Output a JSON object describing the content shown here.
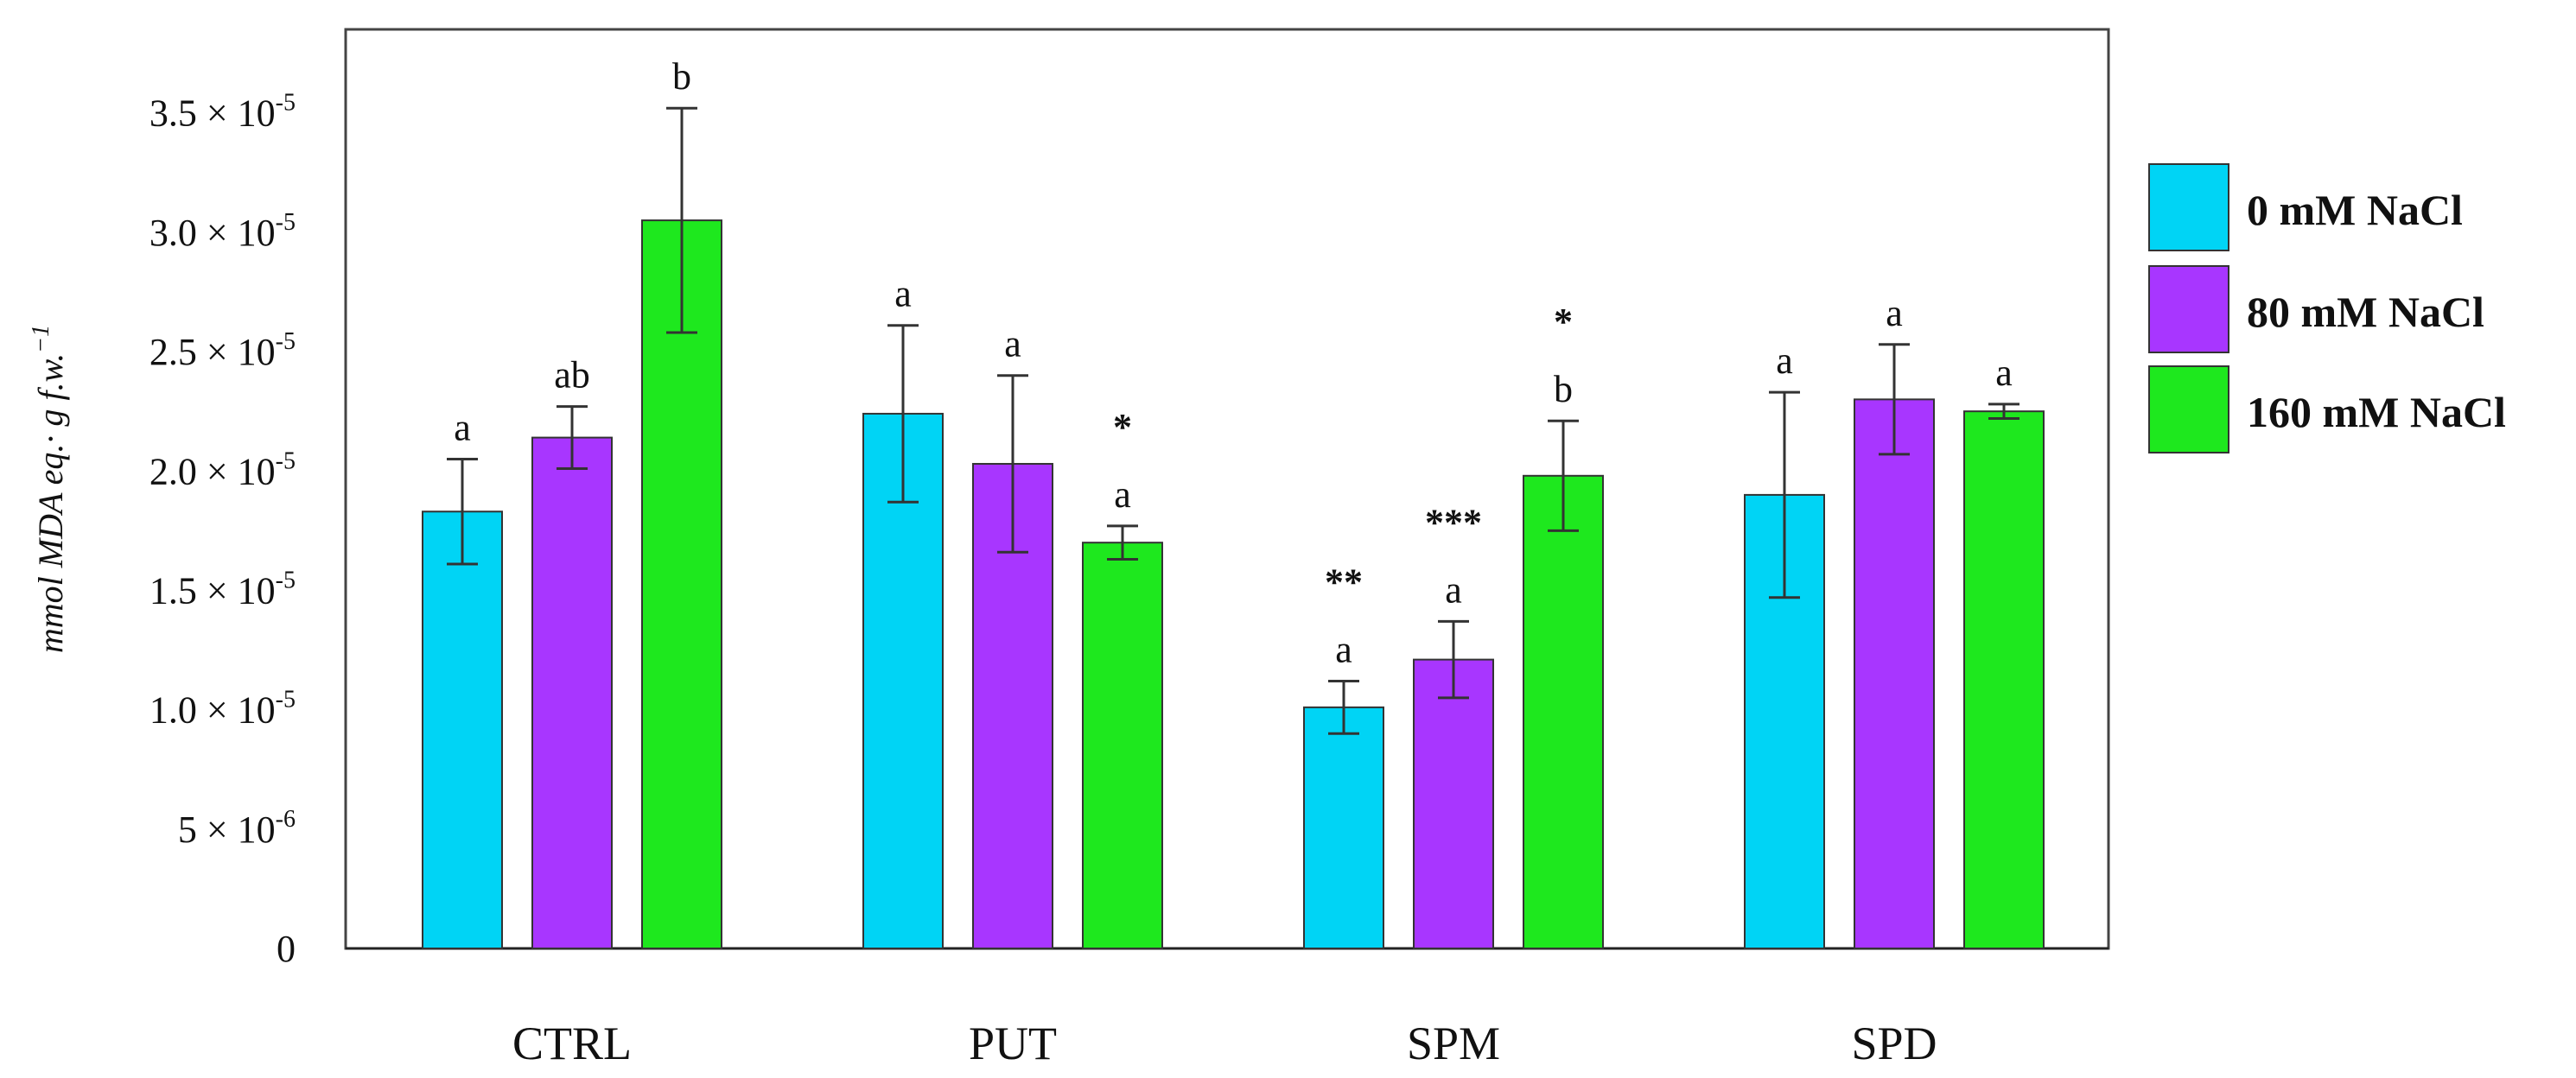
{
  "chart_data": {
    "type": "bar",
    "title": "",
    "xlabel": "",
    "ylabel": "mmol MDA eq.· g f.w.",
    "ylabel_exponent": "−1",
    "ylim": [
      0,
      3.85e-05
    ],
    "yticks": [
      {
        "value": 0,
        "label": "0"
      },
      {
        "value": 5e-06,
        "label": "5 × 10",
        "exp": "-6"
      },
      {
        "value": 1e-05,
        "label": "1.0 × 10",
        "exp": "-5"
      },
      {
        "value": 1.5e-05,
        "label": "1.5 × 10",
        "exp": "-5"
      },
      {
        "value": 2e-05,
        "label": "2.0 × 10",
        "exp": "-5"
      },
      {
        "value": 2.5e-05,
        "label": "2.5 × 10",
        "exp": "-5"
      },
      {
        "value": 3e-05,
        "label": "3.0 × 10",
        "exp": "-5"
      },
      {
        "value": 3.5e-05,
        "label": "3.5 × 10",
        "exp": "-5"
      }
    ],
    "categories": [
      "CTRL",
      "PUT",
      "SPM",
      "SPD"
    ],
    "series": [
      {
        "name": "0 mM NaCl",
        "color": "#00d4f5",
        "values": [
          1.83e-05,
          2.24e-05,
          1.01e-05,
          1.9e-05
        ],
        "errors": [
          2.2e-06,
          3.7e-06,
          1.1e-06,
          4.3e-06
        ],
        "letters": [
          "a",
          "a",
          "a",
          "a"
        ],
        "stars": [
          "",
          "",
          "**",
          ""
        ]
      },
      {
        "name": "80 mM NaCl",
        "color": "#a836ff",
        "values": [
          2.14e-05,
          2.03e-05,
          1.21e-05,
          2.3e-05
        ],
        "errors": [
          1.3e-06,
          3.7e-06,
          1.6e-06,
          2.3e-06
        ],
        "letters": [
          "ab",
          "a",
          "a",
          "a"
        ],
        "stars": [
          "",
          "",
          "***",
          ""
        ]
      },
      {
        "name": "160 mM NaCl",
        "color": "#1ee81e",
        "values": [
          3.05e-05,
          1.7e-05,
          1.98e-05,
          2.25e-05
        ],
        "errors": [
          4.7e-06,
          7e-07,
          2.3e-06,
          3e-07
        ],
        "letters": [
          "b",
          "a",
          "b",
          "a"
        ],
        "stars": [
          "",
          "*",
          "*",
          ""
        ]
      }
    ],
    "legend_position": "right",
    "grid": false
  }
}
